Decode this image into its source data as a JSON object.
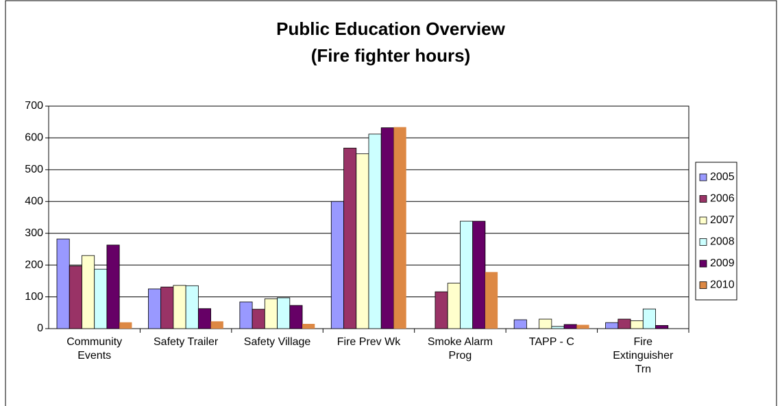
{
  "chart_data": {
    "type": "bar",
    "title": "Public Education Overview",
    "subtitle": "(Fire fighter hours)",
    "categories": [
      "Community Events",
      "Safety Trailer",
      "Safety Village",
      "Fire Prev Wk",
      "Smoke Alarm Prog",
      "TAPP - C",
      "Fire Extinguisher Trn"
    ],
    "series": [
      {
        "name": "2005",
        "color": "#9999ff",
        "values": [
          282,
          125,
          84,
          400,
          0,
          28,
          19
        ]
      },
      {
        "name": "2006",
        "color": "#993366",
        "values": [
          197,
          131,
          61,
          568,
          116,
          0,
          30
        ]
      },
      {
        "name": "2007",
        "color": "#ffffcc",
        "values": [
          230,
          136,
          94,
          550,
          143,
          30,
          25
        ]
      },
      {
        "name": "2008",
        "color": "#ccffff",
        "values": [
          187,
          135,
          97,
          612,
          338,
          7,
          62
        ]
      },
      {
        "name": "2009",
        "color": "#660066",
        "values": [
          263,
          63,
          73,
          632,
          338,
          13,
          10
        ]
      },
      {
        "name": "2010",
        "color": "#dd8844",
        "values": [
          20,
          23,
          15,
          634,
          178,
          12,
          0
        ]
      }
    ],
    "ylim": [
      0,
      700
    ],
    "yticks": [
      0,
      100,
      200,
      300,
      400,
      500,
      600,
      700
    ],
    "grid": true,
    "legend": "right"
  }
}
